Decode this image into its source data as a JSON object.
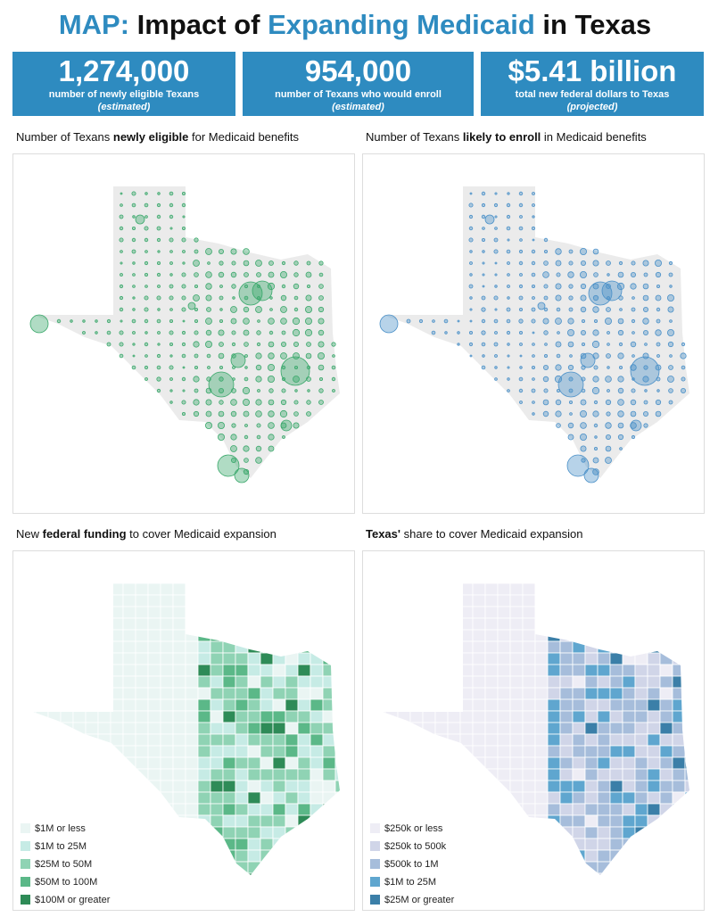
{
  "title": {
    "parts": [
      {
        "text": "MAP:",
        "color": "#2e8bc0"
      },
      {
        "text": " Impact of ",
        "color": "#111111"
      },
      {
        "text": "Expanding Medicaid",
        "color": "#2e8bc0"
      },
      {
        "text": " in Texas",
        "color": "#111111"
      }
    ]
  },
  "stats": [
    {
      "value": "1,274,000",
      "label": "number of newly eligible Texans",
      "note": "(estimated)"
    },
    {
      "value": "954,000",
      "label": "number of Texans who would enroll",
      "note": "(estimated)"
    },
    {
      "value": "$5.41 billion",
      "label": "total new federal dollars to Texas",
      "note": "(projected)"
    }
  ],
  "panels": [
    {
      "title": {
        "before": "Number of Texans ",
        "bold": "newly eligible",
        "after": " for Medicaid benefits"
      },
      "kind": "bubble",
      "color": "#3aa86b"
    },
    {
      "title": {
        "before": "Number of Texans ",
        "bold": "likely to enroll",
        "after": " in Medicaid benefits"
      },
      "kind": "bubble",
      "color": "#4a90c8"
    },
    {
      "title": {
        "before": "New ",
        "bold": "federal funding",
        "after": " to cover Medicaid expansion"
      },
      "kind": "choropleth",
      "legend": [
        {
          "label": "$1M or less",
          "color": "#eaf5f3"
        },
        {
          "label": "$1M to 25M",
          "color": "#c6ebe5"
        },
        {
          "label": "$25M to 50M",
          "color": "#8fd3b4"
        },
        {
          "label": "$50M to 100M",
          "color": "#5bb888"
        },
        {
          "label": "$100M or greater",
          "color": "#2e8b57"
        }
      ]
    },
    {
      "title": {
        "before": "",
        "bold": "Texas'",
        "after": " share to cover Medicaid expansion"
      },
      "kind": "choropleth",
      "legend": [
        {
          "label": "$250k or less",
          "color": "#eeedf5"
        },
        {
          "label": "$250k to 500k",
          "color": "#d0d5e8"
        },
        {
          "label": "$500k to 1M",
          "color": "#a6bddb"
        },
        {
          "label": "$1M to 25M",
          "color": "#5fa6cf"
        },
        {
          "label": "$25M or greater",
          "color": "#3b7fa8"
        }
      ]
    }
  ]
}
